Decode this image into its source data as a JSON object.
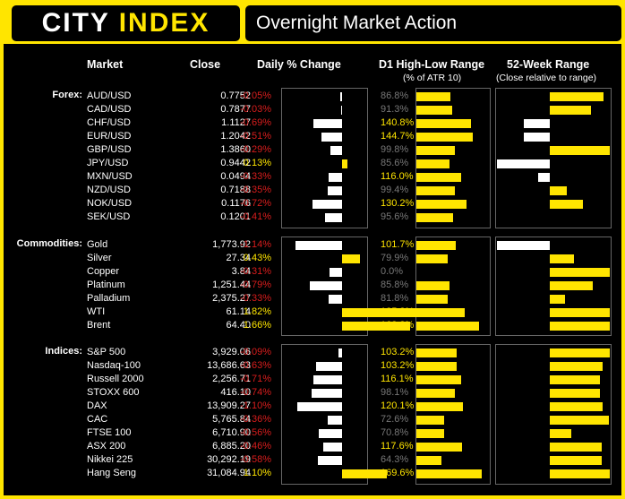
{
  "header": {
    "logo_main": "CITY",
    "logo_accent": "INDEX",
    "title": "Overnight Market Action"
  },
  "columns": {
    "market": "Market",
    "close": "Close",
    "daily": "Daily % Change",
    "d1": "D1 High-Low Range",
    "d1_sub": "(% of ATR 10)",
    "week52": "52-Week Range",
    "week52_sub": "(Close relative to range)"
  },
  "colors": {
    "brand_yellow": "#ffe500",
    "negative_red": "#d81d1d",
    "bar_white": "#ffffff",
    "background": "#000000"
  },
  "chart_data": {
    "type": "table",
    "sections": [
      {
        "label": "Forex:",
        "rows": [
          {
            "market": "AUD/USD",
            "close": "0.7752",
            "daily": "-0.05%",
            "daily_value": -0.05,
            "range": "86.8%",
            "range_value": 86.8,
            "week52_value": 0.9
          },
          {
            "market": "CAD/USD",
            "close": "0.7877",
            "daily": "-0.03%",
            "daily_value": -0.03,
            "range": "91.3%",
            "range_value": 91.3,
            "week52_value": 0.68
          },
          {
            "market": "CHF/USD",
            "close": "1.1127",
            "daily": "-0.69%",
            "daily_value": -0.69,
            "range": "140.8%",
            "range_value": 140.8,
            "week52_value": -0.5
          },
          {
            "market": "EUR/USD",
            "close": "1.2042",
            "daily": "-0.51%",
            "daily_value": -0.51,
            "range": "144.7%",
            "range_value": 144.7,
            "week52_value": -0.5
          },
          {
            "market": "GBP/USD",
            "close": "1.3860",
            "daily": "-0.29%",
            "daily_value": -0.29,
            "range": "99.8%",
            "range_value": 99.8,
            "week52_value": 1.0
          },
          {
            "market": "JPY/USD",
            "close": "0.9442",
            "daily": "0.13%",
            "daily_value": 0.13,
            "range": "85.6%",
            "range_value": 85.6,
            "week52_value": -1.0
          },
          {
            "market": "MXN/USD",
            "close": "0.0494",
            "daily": "-0.33%",
            "daily_value": -0.33,
            "range": "116.0%",
            "range_value": 116.0,
            "week52_value": -0.22
          },
          {
            "market": "NZD/USD",
            "close": "0.7188",
            "daily": "-0.35%",
            "daily_value": -0.35,
            "range": "99.4%",
            "range_value": 99.4,
            "week52_value": 0.29
          },
          {
            "market": "NOK/USD",
            "close": "0.1176",
            "daily": "-0.72%",
            "daily_value": -0.72,
            "range": "130.2%",
            "range_value": 130.2,
            "week52_value": 0.55
          },
          {
            "market": "SEK/USD",
            "close": "0.1201",
            "daily": "-0.41%",
            "daily_value": -0.41,
            "range": "95.6%",
            "range_value": 95.6,
            "week52_value": 0.0
          }
        ]
      },
      {
        "label": "Commodities:",
        "rows": [
          {
            "market": "Gold",
            "close": "1,773.92",
            "daily": "-1.14%",
            "daily_value": -1.14,
            "range": "101.7%",
            "range_value": 101.7,
            "week52_value": -1.05
          },
          {
            "market": "Silver",
            "close": "27.34",
            "daily": "0.43%",
            "daily_value": 0.43,
            "range": "79.9%",
            "range_value": 79.9,
            "week52_value": 0.41
          },
          {
            "market": "Copper",
            "close": "3.84",
            "daily": "-0.31%",
            "daily_value": -0.31,
            "range": "0.0%",
            "range_value": 0.0,
            "week52_value": 1.0
          },
          {
            "market": "Platinum",
            "close": "1,251.44",
            "daily": "-0.79%",
            "daily_value": -0.79,
            "range": "85.8%",
            "range_value": 85.8,
            "week52_value": 0.71
          },
          {
            "market": "Palladium",
            "close": "2,375.27",
            "daily": "-0.33%",
            "daily_value": -0.33,
            "range": "81.8%",
            "range_value": 81.8,
            "week52_value": 0.26
          },
          {
            "market": "WTI",
            "close": "61.14",
            "daily": "1.82%",
            "daily_value": 1.82,
            "range": "125.3%",
            "range_value": 125.3,
            "week52_value": 1.0
          },
          {
            "market": "Brent",
            "close": "64.40",
            "daily": "1.66%",
            "daily_value": 1.66,
            "range": "162.3%",
            "range_value": 162.3,
            "week52_value": 1.0
          }
        ]
      },
      {
        "label": "Indices:",
        "rows": [
          {
            "market": "S&P 500",
            "close": "3,929.06",
            "daily": "-0.09%",
            "daily_value": -0.09,
            "range": "103.2%",
            "range_value": 103.2,
            "week52_value": 1.0
          },
          {
            "market": "Nasdaq-100",
            "close": "13,686.63",
            "daily": "-0.63%",
            "daily_value": -0.63,
            "range": "103.2%",
            "range_value": 103.2,
            "week52_value": 0.88
          },
          {
            "market": "Russell 2000",
            "close": "2,256.71",
            "daily": "-0.71%",
            "daily_value": -0.71,
            "range": "116.1%",
            "range_value": 116.1,
            "week52_value": 0.84
          },
          {
            "market": "STOXX 600",
            "close": "416.10",
            "daily": "-0.74%",
            "daily_value": -0.74,
            "range": "98.1%",
            "range_value": 98.1,
            "week52_value": 0.84
          },
          {
            "market": "DAX",
            "close": "13,909.27",
            "daily": "-1.10%",
            "daily_value": -1.1,
            "range": "120.1%",
            "range_value": 120.1,
            "week52_value": 0.88
          },
          {
            "market": "CAC",
            "close": "5,765.84",
            "daily": "-0.36%",
            "daily_value": -0.36,
            "range": "72.6%",
            "range_value": 72.6,
            "week52_value": 0.98
          },
          {
            "market": "FTSE 100",
            "close": "6,710.90",
            "daily": "-0.56%",
            "daily_value": -0.56,
            "range": "70.8%",
            "range_value": 70.8,
            "week52_value": 0.36
          },
          {
            "market": "ASX 200",
            "close": "6,885.20",
            "daily": "-0.46%",
            "daily_value": -0.46,
            "range": "117.6%",
            "range_value": 117.6,
            "week52_value": 0.86
          },
          {
            "market": "Nikkei 225",
            "close": "30,292.19",
            "daily": "-0.58%",
            "daily_value": -0.58,
            "range": "64.3%",
            "range_value": 64.3,
            "week52_value": 0.86
          },
          {
            "market": "Hang Seng",
            "close": "31,084.94",
            "daily": "1.10%",
            "daily_value": 1.1,
            "range": "169.6%",
            "range_value": 169.6,
            "week52_value": 1.0
          }
        ]
      }
    ],
    "daily_axis_range": [
      -1.4,
      1.9
    ],
    "range_axis_max": 180,
    "week52_axis_range": [
      -1,
      1
    ]
  }
}
